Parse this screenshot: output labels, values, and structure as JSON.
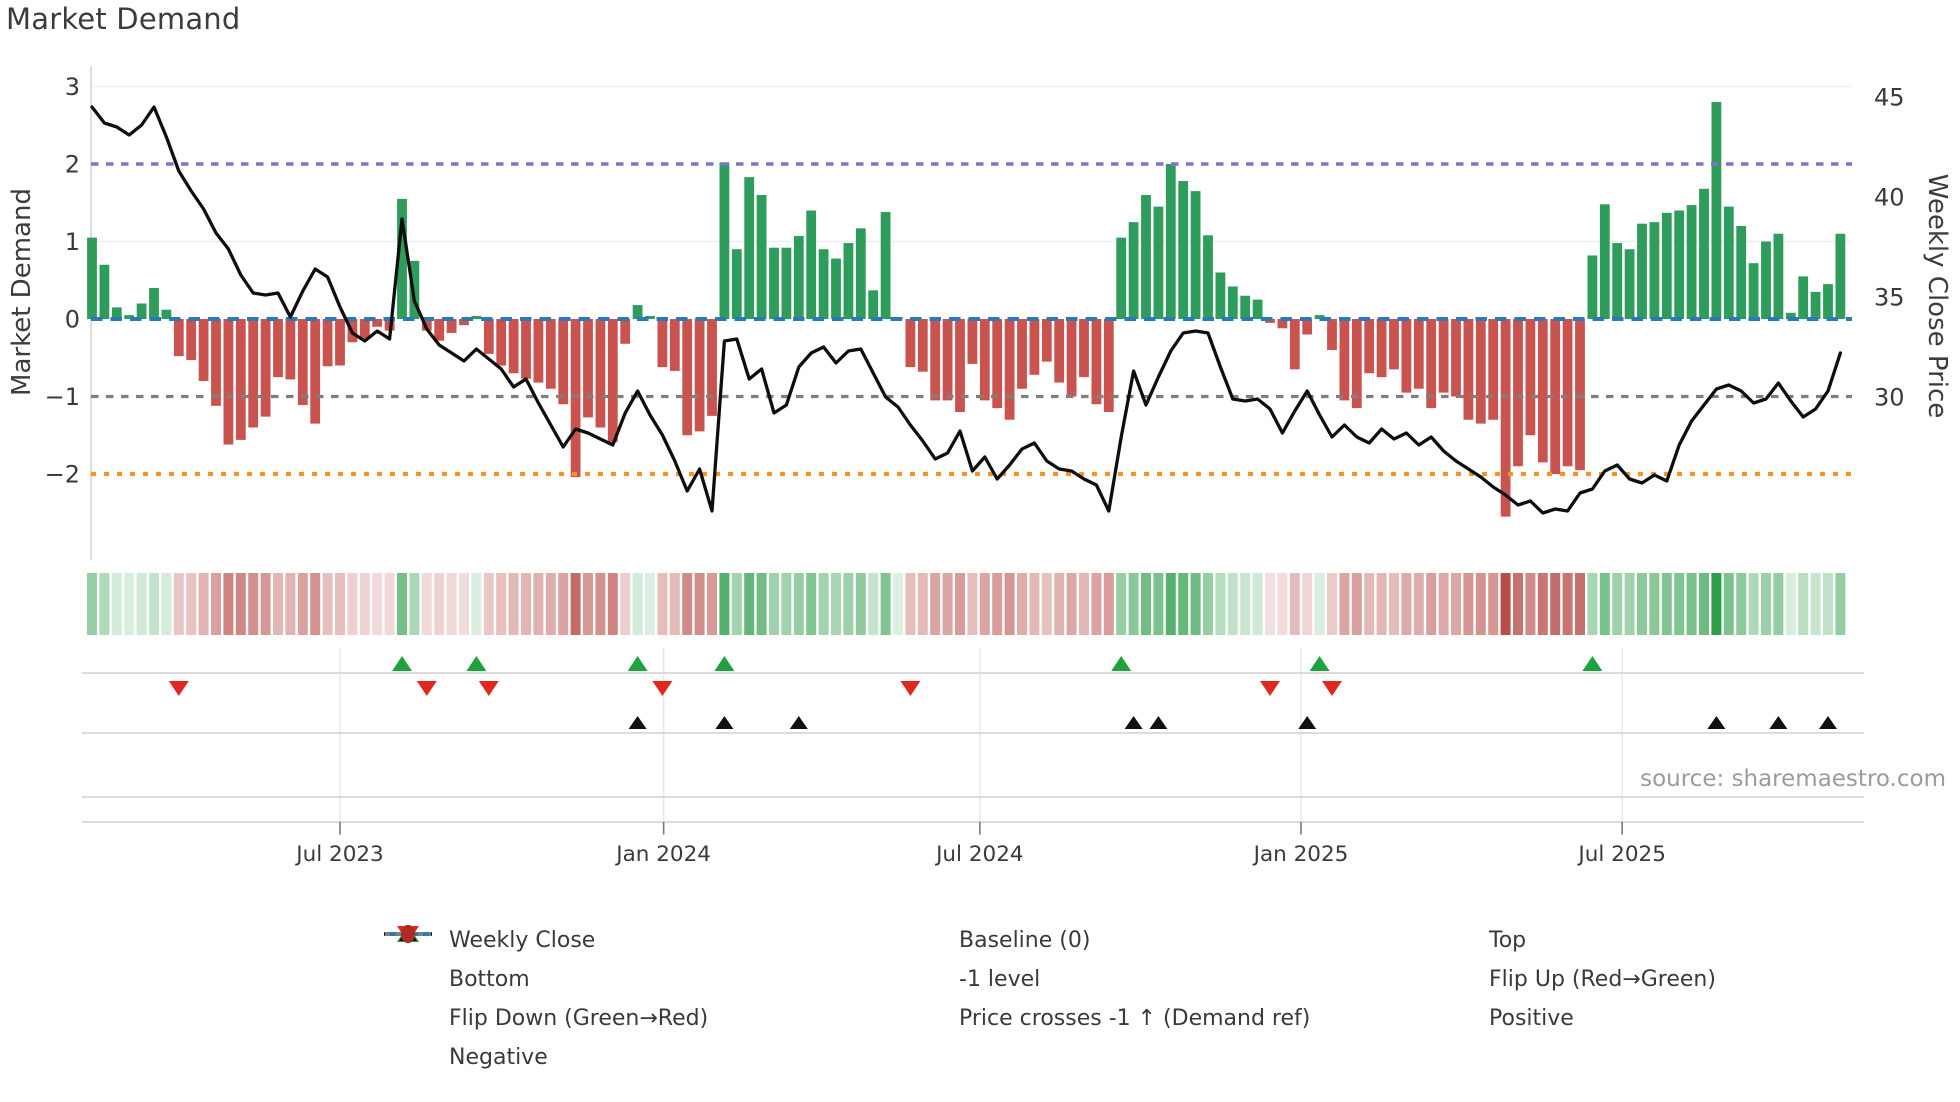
{
  "title": "Market Demand",
  "left_axis": {
    "label": "Market Demand",
    "ticks": [
      "3",
      "2",
      "1",
      "0",
      "−1",
      "−2"
    ],
    "tick_values": [
      3,
      2,
      1,
      0,
      -1,
      -2
    ]
  },
  "right_axis": {
    "label": "Weekly Close Price",
    "ticks": [
      "45",
      "40",
      "35",
      "30"
    ],
    "tick_values": [
      45,
      40,
      35,
      30
    ]
  },
  "x_axis": {
    "ticks": [
      {
        "label": "Jul 2023",
        "week": 20.0
      },
      {
        "label": "Jan 2024",
        "week": 46.1
      },
      {
        "label": "Jul 2024",
        "week": 71.6
      },
      {
        "label": "Jan 2025",
        "week": 97.5
      },
      {
        "label": "Jul 2025",
        "week": 123.4
      }
    ]
  },
  "source_text": "source: sharemaestro.com",
  "colors": {
    "green_bar": "#2e9d5b",
    "red_bar": "#c9534f",
    "baseline": "#2a7ab9",
    "top": "#7d72d8",
    "bottom": "#f59426",
    "minus1": "#7f7f7f",
    "price_line": "#0e0e0e",
    "flip_up": "#1ea33c",
    "flip_down": "#e02820",
    "cross": "#111111",
    "positive": "#229a41",
    "negative": "#b02a28",
    "grid": "#ededf4",
    "spine": "#d4d4dc",
    "band_line": "#cfcfd6",
    "band_grid": "#e7e7ee",
    "tick_text": "#3a3a3a",
    "heat_pos_base": [
      47,
      158,
      75
    ],
    "heat_neg_base": [
      183,
      74,
      70
    ]
  },
  "legend": {
    "items": [
      {
        "label": "Weekly Close",
        "sym": "line",
        "color": "price_line"
      },
      {
        "label": "Baseline (0)",
        "sym": "dash",
        "color": "baseline"
      },
      {
        "label": "Top",
        "sym": "dots",
        "color": "top"
      },
      {
        "label": "Bottom",
        "sym": "dots",
        "color": "bottom"
      },
      {
        "label": "-1 level",
        "sym": "dots",
        "color": "minus1"
      },
      {
        "label": "Flip Up (Red→Green)",
        "sym": "tri_up",
        "color": "flip_up"
      },
      {
        "label": "Flip Down (Green→Red)",
        "sym": "tri_down",
        "color": "flip_down"
      },
      {
        "label": "Price crosses -1 ↑ (Demand ref)",
        "sym": "tri_up_small",
        "color": "cross"
      },
      {
        "label": "Positive",
        "sym": "circle",
        "color": "positive"
      },
      {
        "label": "Negative",
        "sym": "circle",
        "color": "negative"
      }
    ]
  },
  "chart_data": {
    "type": "bar",
    "subtype": "combo-bar-line-heatmap",
    "title": "Market Demand",
    "xlabel": "",
    "ylabel_left": "Market Demand",
    "ylabel_right": "Weekly Close Price",
    "n_weeks": 142,
    "x_unit": "week",
    "left_ylim": [
      -2.9,
      3.27
    ],
    "right_ylim": [
      22.0,
      45.5
    ],
    "grid": "horizontal-light",
    "legend_position": "bottom",
    "reference_lines": {
      "top": 2,
      "baseline": 0,
      "minus1": -1,
      "bottom": -2
    },
    "series": [
      {
        "name": "Market Demand",
        "type": "bar",
        "values": [
          1.05,
          0.7,
          0.15,
          0.05,
          0.2,
          0.4,
          0.12,
          -0.48,
          -0.53,
          -0.8,
          -1.12,
          -1.62,
          -1.56,
          -1.4,
          -1.26,
          -0.75,
          -0.78,
          -1.11,
          -1.35,
          -0.61,
          -0.6,
          -0.3,
          -0.25,
          -0.1,
          -0.15,
          1.55,
          0.75,
          -0.15,
          -0.28,
          -0.18,
          -0.08,
          0.04,
          -0.45,
          -0.6,
          -0.7,
          -0.77,
          -0.82,
          -0.9,
          -1.1,
          -2.04,
          -1.27,
          -1.4,
          -1.59,
          -0.32,
          0.18,
          0.04,
          -0.62,
          -0.67,
          -1.5,
          -1.45,
          -1.25,
          2.02,
          0.9,
          1.83,
          1.6,
          0.92,
          0.92,
          1.07,
          1.4,
          0.9,
          0.78,
          0.98,
          1.17,
          0.37,
          1.38,
          0.02,
          -0.62,
          -0.68,
          -1.05,
          -1.05,
          -1.2,
          -0.58,
          -1.05,
          -1.15,
          -1.3,
          -0.9,
          -0.72,
          -0.55,
          -0.82,
          -1.0,
          -0.75,
          -1.1,
          -1.2,
          1.05,
          1.25,
          1.6,
          1.45,
          2.0,
          1.78,
          1.65,
          1.08,
          0.6,
          0.42,
          0.3,
          0.25,
          -0.05,
          -0.12,
          -0.65,
          -0.2,
          0.05,
          -0.4,
          -1.05,
          -1.15,
          -0.7,
          -0.75,
          -0.65,
          -0.95,
          -0.9,
          -1.15,
          -0.95,
          -1.0,
          -1.3,
          -1.35,
          -1.3,
          -2.55,
          -1.9,
          -1.5,
          -1.85,
          -2.0,
          -1.9,
          -1.95,
          0.82,
          1.48,
          0.98,
          0.9,
          1.23,
          1.25,
          1.37,
          1.4,
          1.47,
          1.68,
          2.8,
          1.45,
          1.2,
          0.72,
          1.0,
          1.1,
          0.08,
          0.55,
          0.35,
          0.45,
          1.1
        ]
      },
      {
        "name": "Weekly Close",
        "type": "line",
        "values": [
          44.5,
          43.7,
          43.5,
          43.1,
          43.6,
          44.5,
          43.0,
          41.3,
          40.3,
          39.4,
          38.2,
          37.4,
          36.1,
          35.2,
          35.1,
          35.2,
          34.0,
          35.3,
          36.4,
          36.0,
          34.5,
          33.2,
          32.8,
          33.3,
          32.9,
          38.9,
          34.8,
          33.4,
          32.6,
          32.2,
          31.8,
          32.4,
          31.9,
          31.4,
          30.5,
          30.9,
          29.7,
          28.6,
          27.5,
          28.4,
          28.2,
          27.9,
          27.6,
          29.2,
          30.3,
          29.1,
          28.1,
          26.8,
          25.3,
          26.4,
          24.3,
          32.8,
          32.9,
          30.9,
          31.4,
          29.2,
          29.6,
          31.5,
          32.2,
          32.5,
          31.7,
          32.3,
          32.4,
          31.2,
          30.0,
          29.5,
          28.6,
          27.8,
          26.9,
          27.2,
          28.3,
          26.3,
          27.0,
          25.9,
          26.6,
          27.4,
          27.7,
          26.8,
          26.4,
          26.3,
          25.9,
          25.6,
          24.3,
          28.0,
          31.3,
          29.6,
          31.0,
          32.3,
          33.2,
          33.3,
          33.2,
          31.5,
          29.9,
          29.8,
          29.9,
          29.4,
          28.2,
          29.3,
          30.3,
          29.1,
          28.0,
          28.6,
          28.0,
          27.7,
          28.4,
          27.9,
          28.2,
          27.6,
          28.0,
          27.3,
          26.8,
          26.4,
          26.0,
          25.5,
          25.1,
          24.6,
          24.8,
          24.2,
          24.4,
          24.3,
          25.2,
          25.4,
          26.3,
          26.6,
          25.9,
          25.7,
          26.1,
          25.8,
          27.6,
          28.8,
          29.6,
          30.4,
          30.6,
          30.3,
          29.7,
          29.9,
          30.7,
          29.8,
          29.0,
          29.4,
          30.3,
          32.2
        ]
      }
    ],
    "heatmap": {
      "note": "strip below chart, one cell per week, color = sign and magnitude of Market Demand bar"
    },
    "markers": {
      "flip_up_weeks": [
        25,
        31,
        44,
        51,
        83,
        99,
        121
      ],
      "flip_down_weeks": [
        7,
        27,
        32,
        46,
        66,
        95,
        100
      ],
      "price_cross_weeks": [
        44,
        51,
        57,
        84,
        86,
        98,
        131,
        136,
        140
      ]
    }
  }
}
